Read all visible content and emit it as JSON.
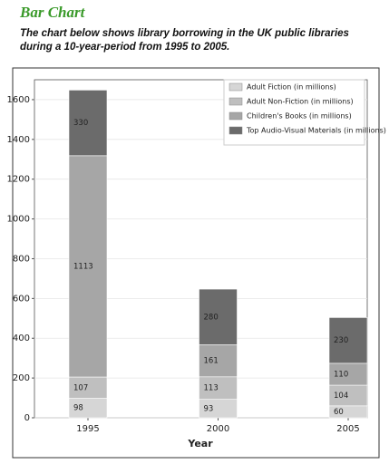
{
  "header": {
    "title": "Bar Chart",
    "subtitle": [
      "The chart below shows library borrowing in the UK public libraries",
      "during a 10-year-period from 1995 to 2005."
    ]
  },
  "chart_data": {
    "type": "stacked_bar",
    "x_label": "Year",
    "categories": [
      "1995",
      "2000",
      "2005"
    ],
    "series": [
      {
        "name": "Adult Fiction (in millions)",
        "color": "#d6d6d6",
        "values": [
          98,
          93,
          60
        ]
      },
      {
        "name": "Adult Non-Fiction (in millions)",
        "color": "#bfbfbf",
        "values": [
          107,
          113,
          104
        ]
      },
      {
        "name": "Children's Books (in millions)",
        "color": "#a6a6a6",
        "values": [
          1113,
          161,
          110
        ]
      },
      {
        "name": "Top Audio-Visual Materials (in millions)",
        "color": "#6b6b6b",
        "values": [
          330,
          280,
          230
        ]
      }
    ],
    "ylim": [
      0,
      1700
    ],
    "yticks": [
      0,
      200,
      400,
      600,
      800,
      1000,
      1200,
      1400,
      1600
    ],
    "grid": true,
    "legend": "upper right",
    "data_labels": true
  }
}
